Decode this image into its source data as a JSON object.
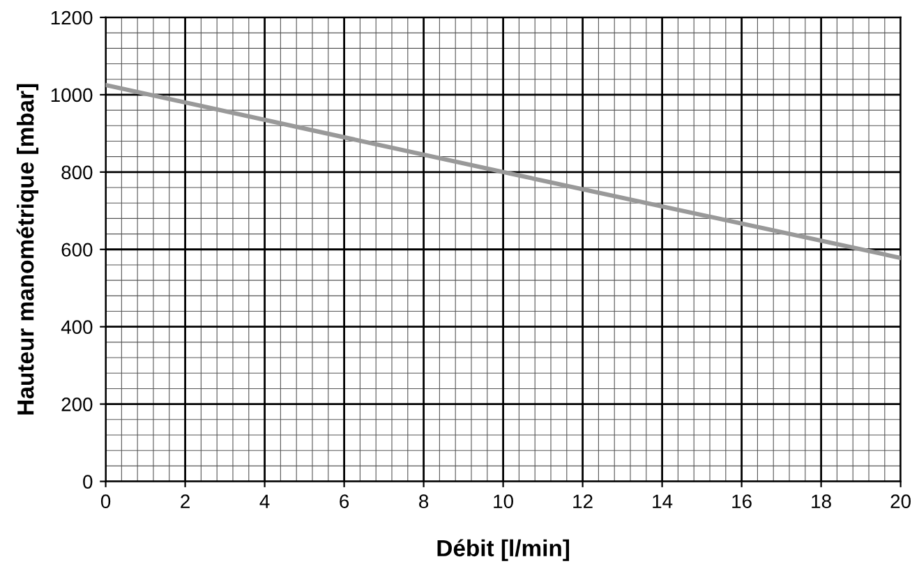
{
  "chart_data": {
    "type": "line",
    "xlabel": "Débit [l/min]",
    "ylabel": "Hauteur manométrique [mbar]",
    "x": [
      0,
      10,
      20
    ],
    "series": [
      {
        "color": "#999999",
        "values": [
          1025,
          800,
          578
        ]
      }
    ],
    "xlim": [
      0,
      20
    ],
    "xticks": [
      0,
      2,
      4,
      6,
      8,
      10,
      12,
      14,
      16,
      18,
      20
    ],
    "ylim": [
      0,
      1200
    ],
    "yticks": [
      0,
      200,
      400,
      600,
      800,
      1000,
      1200
    ],
    "grid": true,
    "marker": "none",
    "line_style": "solid"
  }
}
